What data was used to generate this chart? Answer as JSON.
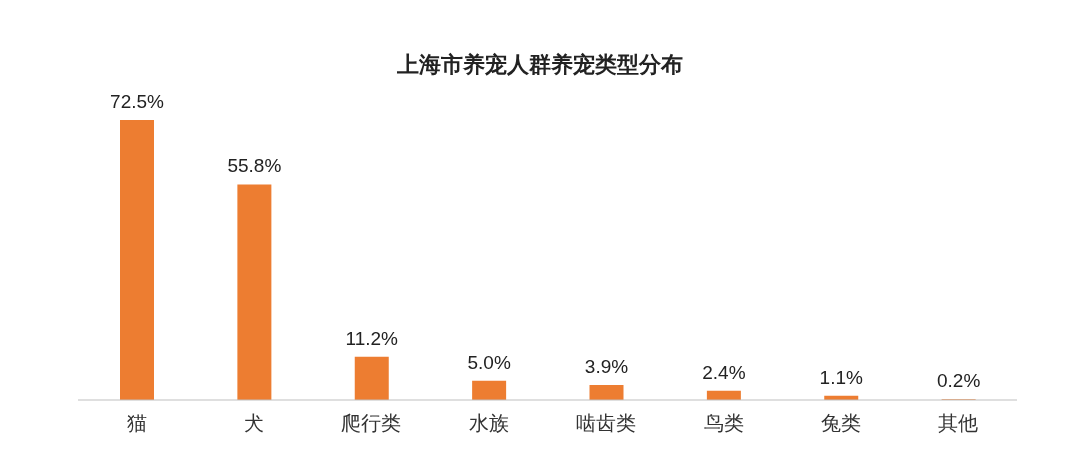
{
  "chart_data": {
    "type": "bar",
    "title": "上海市养宠人群养宠类型分布",
    "categories": [
      "猫",
      "犬",
      "爬行类",
      "水族",
      "啮齿类",
      "鸟类",
      "兔类",
      "其他"
    ],
    "values": [
      72.5,
      55.8,
      11.2,
      5.0,
      3.9,
      2.4,
      1.1,
      0.2
    ],
    "value_labels": [
      "72.5%",
      "55.8%",
      "11.2%",
      "5.0%",
      "3.9%",
      "2.4%",
      "1.1%",
      "0.2%"
    ],
    "color": "#ed7d31",
    "grid": false,
    "legend": false
  }
}
